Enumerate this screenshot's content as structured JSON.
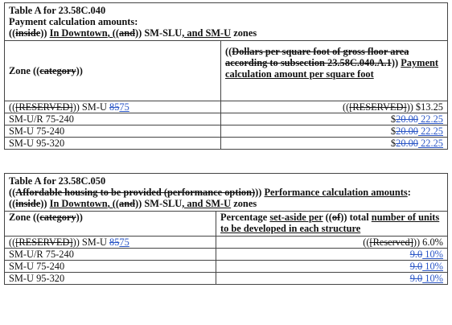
{
  "table_a": {
    "title": "Table A for 23.58C.040",
    "subtitle": "Payment calculation amounts:",
    "zones": {
      "p1": "((",
      "p2": "inside",
      "p3": ")) ",
      "p4": "In Downtown",
      "p5": ", ((",
      "p6": "and",
      "p7": ")) SM-SLU",
      "p8": ", and SM-U",
      "p9": " zones"
    },
    "col1": {
      "p1": "Zone ((",
      "p2": "category",
      "p3": "))"
    },
    "col2": {
      "p1": "((",
      "p2": "Dollars per square foot of gross floor area according to subsection 23.58C.040.A.1",
      "p3": ")) ",
      "p4": "Payment calculation amount per square foot"
    },
    "rows": [
      {
        "zone_a": "((",
        "zone_b": "[RESERVED]",
        "zone_c": ")) SM-U ",
        "zone_old": "85",
        "zone_new": "75",
        "val_a": "((",
        "val_b": "[RESERVED]",
        "val_c": ")) $13.25",
        "val_old": "",
        "val_new": ""
      },
      {
        "zone_a": "SM-U/R 75-240",
        "zone_b": "",
        "zone_c": "",
        "zone_old": "",
        "zone_new": "",
        "val_a": "$",
        "val_b": "",
        "val_c": "",
        "val_old": "20.00",
        "val_new": " 22.25"
      },
      {
        "zone_a": "SM-U 75-240",
        "zone_b": "",
        "zone_c": "",
        "zone_old": "",
        "zone_new": "",
        "val_a": "$",
        "val_b": "",
        "val_c": "",
        "val_old": "20.00",
        "val_new": " 22.25"
      },
      {
        "zone_a": "SM-U 95-320",
        "zone_b": "",
        "zone_c": "",
        "zone_old": "",
        "zone_new": "",
        "val_a": "$",
        "val_b": "",
        "val_c": "",
        "val_old": "20.00",
        "val_new": " 22.25"
      }
    ]
  },
  "table_b": {
    "title": "Table A for 23.58C.050",
    "line2": {
      "p1": "((",
      "p2": "Affordable housing to be provided (performance option)",
      "p3": ")) ",
      "p4": "Performance calculation amounts"
    },
    "zones": {
      "p1": "((",
      "p2": "inside",
      "p3": ")) ",
      "p4": "In Downtown",
      "p5": ", ((",
      "p6": "and",
      "p7": ")) SM-SLU",
      "p8": ", and SM-U",
      "p9": " zones"
    },
    "col1": {
      "p1": "Zone ((",
      "p2": "category",
      "p3": "))"
    },
    "col2": {
      "p1": "Percentage ",
      "p2": "set-aside per",
      "p3": " ((",
      "p4": "of",
      "p5": ")) total ",
      "p6": "number of units to be developed in each structure"
    },
    "rows": [
      {
        "zone_a": "((",
        "zone_b": "[RESERVED]",
        "zone_c": ")) SM-U ",
        "zone_old": "85",
        "zone_new": "75",
        "val_a": "((",
        "val_b": "[Reserved]",
        "val_c": ")) 6.0%",
        "val_old": "",
        "val_new": ""
      },
      {
        "zone_a": "SM-U/R 75-240",
        "zone_b": "",
        "zone_c": "",
        "zone_old": "",
        "zone_new": "",
        "val_a": "",
        "val_b": "",
        "val_c": "",
        "val_old": "9.0",
        "val_new": " 10%"
      },
      {
        "zone_a": "SM-U 75-240",
        "zone_b": "",
        "zone_c": "",
        "zone_old": "",
        "zone_new": "",
        "val_a": "",
        "val_b": "",
        "val_c": "",
        "val_old": "9.0",
        "val_new": " 10%"
      },
      {
        "zone_a": "SM-U 95-320",
        "zone_b": "",
        "zone_c": "",
        "zone_old": "",
        "zone_new": "",
        "val_a": "",
        "val_b": "",
        "val_c": "",
        "val_old": "9.0",
        "val_new": " 10%"
      }
    ]
  }
}
